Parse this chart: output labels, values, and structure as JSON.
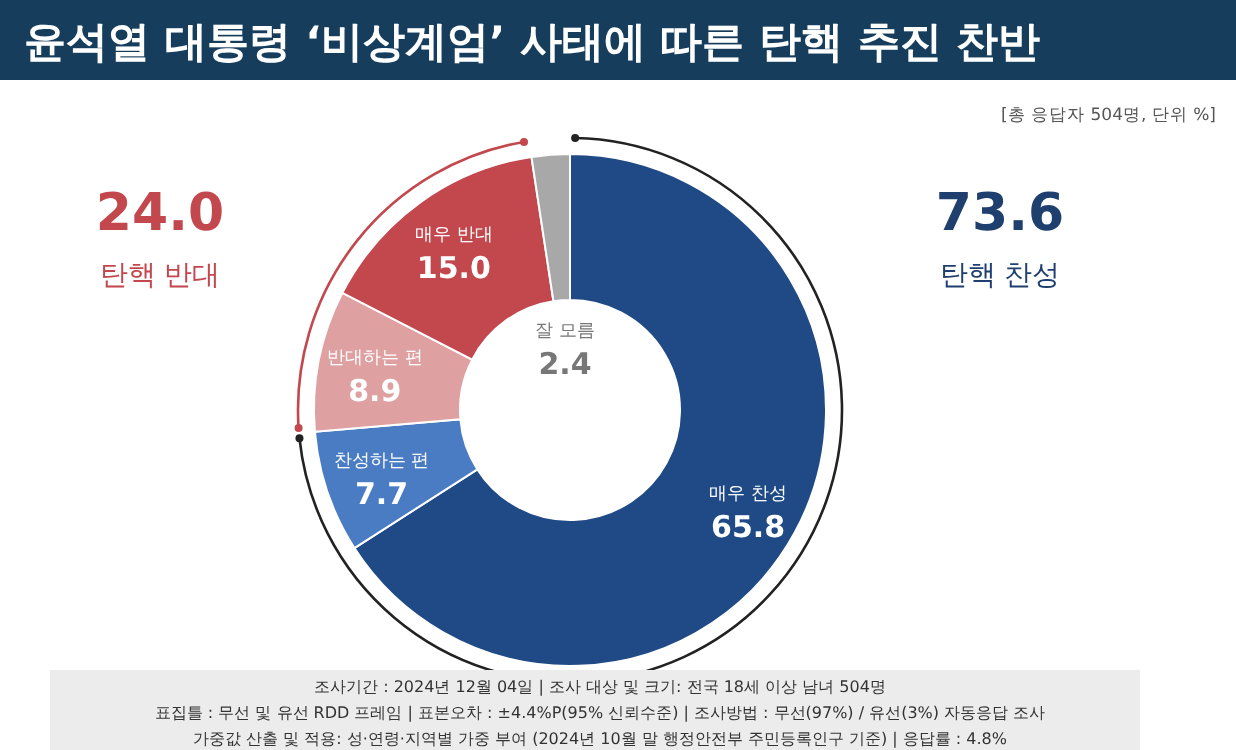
{
  "chart_data": {
    "type": "donut",
    "title": "윤석열 대통령 ‘비상계엄’ 사태에 따른 탄핵 추진 찬반",
    "subtitle": "[총 응답자 504명, 단위 %]",
    "categories": [
      "매우 찬성",
      "찬성하는 편",
      "반대하는 편",
      "매우 반대",
      "잘 모름"
    ],
    "values": [
      65.8,
      7.7,
      8.9,
      15.0,
      2.4
    ],
    "colors": [
      "#1f4a85",
      "#4a7cc4",
      "#dfa0a2",
      "#c2484e",
      "#a8a8a8"
    ],
    "value_labels": [
      "65.8",
      "7.7",
      "8.9",
      "15.0",
      "2.4"
    ],
    "annotations": [
      "24.0",
      "탄핵 반대",
      "73.6",
      "탄핵 찬성",
      "조사기간 : 2024년 12월 04일 | 조사 대상 및 크기: 전국 18세 이상 남녀 504명",
      "표집틀 : 무선 및 유선 RDD 프레임 | 표본오차 : ±4.4%P(95% 신뢰수준) | 조사방법 : 무선(97%) / 유선(3%) 자동응답 조사",
      "가중값 산출 및 적용: 성·연령·지역별 가중 부여 (2024년 10월 말 행정안전부 주민등록인구 기준) | 응답률 : 4.8%"
    ]
  }
}
